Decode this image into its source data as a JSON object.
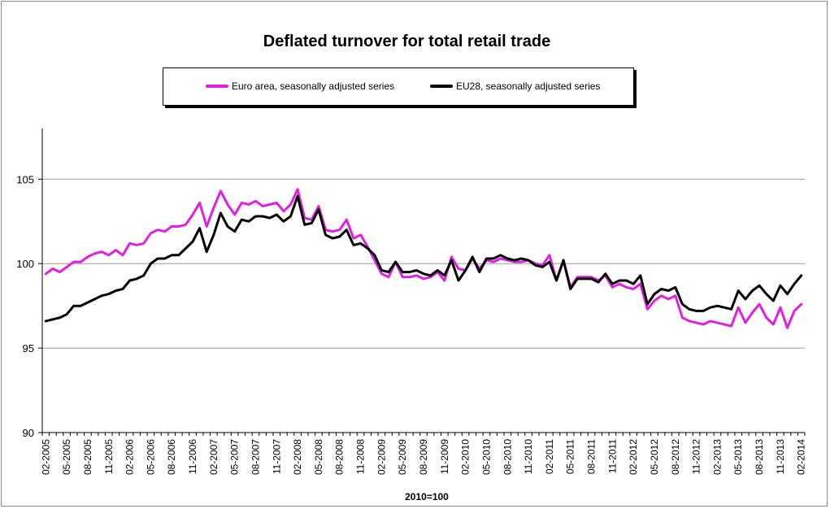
{
  "chart_data": {
    "type": "line",
    "title": "Deflated turnover for total retail trade",
    "xlabel": "2010=100",
    "ylabel": "",
    "ylim": [
      90,
      108
    ],
    "yticks": [
      90,
      95,
      100,
      105
    ],
    "grid": true,
    "legend_position": "top",
    "x_start": "2005-02",
    "x_end": "2014-02",
    "xtick_labels": [
      "02-2005",
      "05-2005",
      "08-2005",
      "11-2005",
      "02-2006",
      "05-2006",
      "08-2006",
      "11-2006",
      "02-2007",
      "05-2007",
      "08-2007",
      "11-2007",
      "02-2008",
      "05-2008",
      "08-2008",
      "11-2008",
      "02-2009",
      "05-2009",
      "08-2009",
      "11-2009",
      "02-2010",
      "05-2010",
      "08-2010",
      "11-2010",
      "02-2011",
      "05-2011",
      "08-2011",
      "11-2011",
      "02-2012",
      "05-2012",
      "08-2012",
      "11-2012",
      "02-2013",
      "05-2013",
      "08-2013",
      "11-2013",
      "02-2014"
    ],
    "series": [
      {
        "name": "Euro area, seasonally adjusted series",
        "color": "#e020e0",
        "values": [
          99.4,
          99.7,
          99.5,
          99.8,
          100.1,
          100.1,
          100.4,
          100.6,
          100.7,
          100.5,
          100.8,
          100.5,
          101.2,
          101.1,
          101.2,
          101.8,
          102.0,
          101.9,
          102.2,
          102.2,
          102.3,
          102.9,
          103.6,
          102.2,
          103.3,
          104.3,
          103.5,
          102.9,
          103.6,
          103.5,
          103.7,
          103.4,
          103.5,
          103.6,
          103.1,
          103.5,
          104.4,
          102.7,
          102.6,
          103.4,
          102.0,
          101.9,
          102.0,
          102.6,
          101.5,
          101.7,
          101.0,
          100.2,
          99.4,
          99.2,
          100.1,
          99.2,
          99.2,
          99.3,
          99.1,
          99.2,
          99.5,
          99.0,
          100.4,
          99.7,
          99.6,
          100.3,
          99.7,
          100.2,
          100.1,
          100.3,
          100.2,
          100.1,
          100.1,
          100.2,
          100.0,
          99.9,
          100.5,
          99.0,
          100.2,
          98.6,
          99.2,
          99.2,
          99.2,
          99.0,
          99.3,
          98.6,
          98.8,
          98.6,
          98.5,
          98.8,
          97.3,
          97.8,
          98.1,
          97.9,
          98.1,
          96.8,
          96.6,
          96.5,
          96.4,
          96.6,
          96.5,
          96.4,
          96.3,
          97.4,
          96.5,
          97.1,
          97.6,
          96.8,
          96.4,
          97.4,
          96.2,
          97.2,
          97.6
        ]
      },
      {
        "name": "EU28, seasonally adjusted series",
        "color": "#000000",
        "values": [
          96.6,
          96.7,
          96.8,
          97.0,
          97.5,
          97.5,
          97.7,
          97.9,
          98.1,
          98.2,
          98.4,
          98.5,
          99.0,
          99.1,
          99.3,
          100.0,
          100.3,
          100.3,
          100.5,
          100.5,
          100.9,
          101.3,
          102.1,
          100.7,
          101.7,
          103.0,
          102.2,
          101.9,
          102.6,
          102.5,
          102.8,
          102.8,
          102.7,
          102.9,
          102.5,
          102.8,
          104.0,
          102.3,
          102.4,
          103.2,
          101.7,
          101.5,
          101.6,
          102.0,
          101.1,
          101.2,
          100.9,
          100.5,
          99.6,
          99.5,
          100.1,
          99.5,
          99.5,
          99.6,
          99.4,
          99.3,
          99.6,
          99.3,
          100.2,
          99.0,
          99.6,
          100.4,
          99.5,
          100.3,
          100.3,
          100.5,
          100.3,
          100.2,
          100.3,
          100.2,
          99.9,
          99.8,
          100.1,
          99.0,
          100.2,
          98.5,
          99.1,
          99.1,
          99.1,
          98.9,
          99.4,
          98.8,
          99.0,
          99.0,
          98.8,
          99.3,
          97.6,
          98.2,
          98.5,
          98.4,
          98.6,
          97.6,
          97.3,
          97.2,
          97.2,
          97.4,
          97.5,
          97.4,
          97.3,
          98.4,
          97.9,
          98.4,
          98.7,
          98.2,
          97.8,
          98.7,
          98.2,
          98.8,
          99.3
        ]
      }
    ]
  }
}
